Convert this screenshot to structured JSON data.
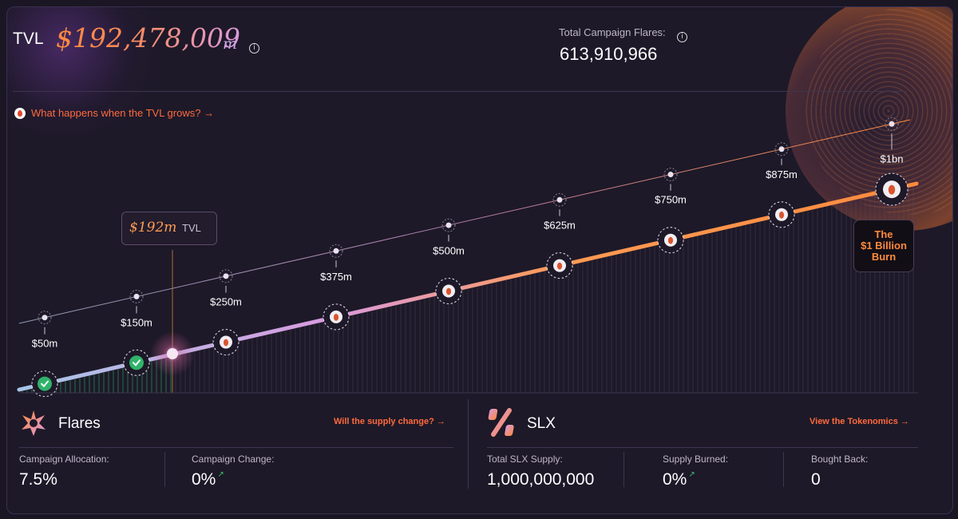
{
  "header": {
    "tvl_label": "TVL",
    "tvl_value": "$192,478,009",
    "tvl_unit": "m",
    "flares_total_label": "Total Campaign Flares:",
    "flares_total_value": "613,910,966",
    "what_link": "What happens when the TVL grows? →"
  },
  "chart": {
    "current_tag_value": "$192m",
    "current_tag_suffix": "TVL",
    "burn_box": [
      "The",
      "$1 Billion",
      "Burn"
    ],
    "milestones": [
      {
        "label": "$50m",
        "status": "done"
      },
      {
        "label": "$150m",
        "status": "done"
      },
      {
        "label": "$250m",
        "status": "pending"
      },
      {
        "label": "$375m",
        "status": "pending"
      },
      {
        "label": "$500m",
        "status": "pending"
      },
      {
        "label": "$625m",
        "status": "pending"
      },
      {
        "label": "$750m",
        "status": "pending"
      },
      {
        "label": "$875m",
        "status": "pending"
      },
      {
        "label": "$1bn",
        "status": "pending"
      }
    ],
    "colors": {
      "start": "#a6c6e8",
      "mid": "#d99adf",
      "end": "#ff8a3d",
      "done": "#2fb36a"
    }
  },
  "flares": {
    "title": "Flares",
    "link": "Will the supply change? →",
    "stats": [
      {
        "label": "Campaign Allocation:",
        "value": "7.5%"
      },
      {
        "label": "Campaign Change:",
        "value": "0%"
      }
    ]
  },
  "slx": {
    "title": "SLX",
    "link": "View the Tokenomics →",
    "stats": [
      {
        "label": "Total SLX Supply:",
        "value": "1,000,000,000"
      },
      {
        "label": "Supply Burned:",
        "value": "0%"
      },
      {
        "label": "Bought Back:",
        "value": "0"
      }
    ]
  }
}
